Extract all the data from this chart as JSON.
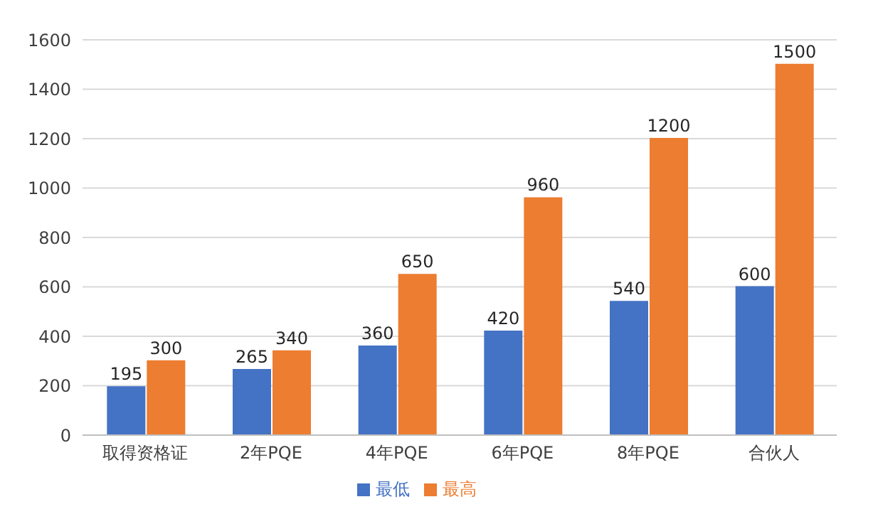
{
  "chart_data": {
    "type": "bar",
    "categories": [
      "取得资格证",
      "2年PQE",
      "4年PQE",
      "6年PQE",
      "8年PQE",
      "合伙人"
    ],
    "series": [
      {
        "name": "最低",
        "color": "#4472c4",
        "values": [
          195,
          265,
          360,
          420,
          540,
          600
        ]
      },
      {
        "name": "最高",
        "color": "#ed7d31",
        "values": [
          300,
          340,
          650,
          960,
          1200,
          1500
        ]
      }
    ],
    "ylim": [
      0,
      1600
    ],
    "yticks": [
      0,
      200,
      400,
      600,
      800,
      1000,
      1200,
      1400,
      1600
    ],
    "grid": "y",
    "legend": "bottom",
    "data_labels": true
  }
}
